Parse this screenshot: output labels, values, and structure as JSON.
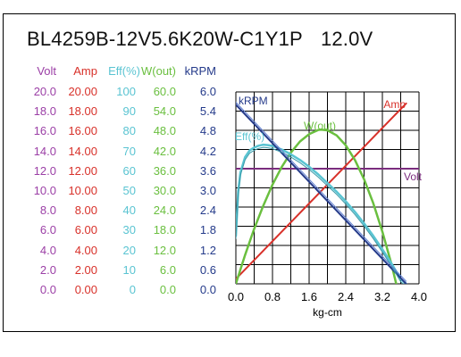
{
  "title": {
    "model": "BL4259B-12V5.6K20W-C1Y1P",
    "voltage": "12.0V"
  },
  "table": {
    "columns": [
      {
        "key": "volt",
        "label": "Volt",
        "color": "#9b3fa6",
        "values": [
          "20.0",
          "18.0",
          "16.0",
          "14.0",
          "12.0",
          "10.0",
          "8.0",
          "6.0",
          "4.0",
          "2.0",
          "0.0"
        ]
      },
      {
        "key": "amp",
        "label": "Amp",
        "color": "#d8312a",
        "values": [
          "20.00",
          "18.00",
          "16.00",
          "14.00",
          "12.00",
          "10.00",
          "8.00",
          "6.00",
          "4.00",
          "2.00",
          "0.00"
        ]
      },
      {
        "key": "eff",
        "label": "Eff(%)",
        "color": "#5ac4d2",
        "values": [
          "100",
          "90",
          "80",
          "70",
          "60",
          "50",
          "40",
          "30",
          "20",
          "10",
          "0"
        ]
      },
      {
        "key": "wout",
        "label": "W(out)",
        "color": "#6abf3f",
        "values": [
          "60.0",
          "54.0",
          "48.0",
          "42.0",
          "36.0",
          "30.0",
          "24.0",
          "18.0",
          "12.0",
          "6.0",
          "0.0"
        ]
      },
      {
        "key": "krpm",
        "label": "kRPM",
        "color": "#243a8a",
        "values": [
          "6.0",
          "5.4",
          "4.8",
          "4.2",
          "3.6",
          "3.0",
          "2.4",
          "1.8",
          "1.2",
          "0.6",
          "0.0"
        ]
      }
    ]
  },
  "chart_data": {
    "type": "line",
    "xlabel": "kg-cm",
    "xlim": [
      0,
      4.0
    ],
    "xticks": [
      "0.0",
      "0.8",
      "1.6",
      "2.4",
      "3.2",
      "4.0"
    ],
    "grid": true,
    "series": [
      {
        "name": "kRPM",
        "color": "#243a8a",
        "scale_max": 6.0,
        "x": [
          0.0,
          3.72
        ],
        "y": [
          5.6,
          0.0
        ]
      },
      {
        "name": "Amp",
        "color": "#d8312a",
        "scale_max": 20.0,
        "x": [
          0.0,
          3.72
        ],
        "y": [
          0.5,
          18.8
        ]
      },
      {
        "name": "Volt",
        "color": "#7b2d7e",
        "scale_max": 20.0,
        "x": [
          0.0,
          4.0
        ],
        "y": [
          12.0,
          12.0
        ]
      },
      {
        "name": "W(out)",
        "color": "#6abf3f",
        "scale_max": 60.0,
        "x": [
          0.0,
          0.2,
          0.4,
          0.6,
          0.8,
          1.0,
          1.2,
          1.4,
          1.6,
          1.8,
          1.86,
          2.0,
          2.2,
          2.4,
          2.6,
          2.8,
          3.0,
          3.2,
          3.4,
          3.6,
          3.72
        ],
        "y": [
          0.0,
          9.0,
          17.2,
          24.5,
          31.0,
          36.5,
          41.0,
          44.5,
          46.8,
          48.1,
          48.2,
          48.0,
          46.4,
          43.3,
          38.7,
          32.7,
          25.2,
          16.3,
          6.0,
          -5.8,
          -13.0
        ]
      },
      {
        "name": "Eff(%)",
        "color": "#5ac4d2",
        "scale_max": 100.0,
        "x": [
          0.0,
          0.05,
          0.1,
          0.2,
          0.3,
          0.4,
          0.5,
          0.6,
          0.7,
          0.8,
          1.0,
          1.2,
          1.4,
          1.6,
          1.8,
          2.0,
          2.2,
          2.4,
          2.6,
          2.8,
          3.0,
          3.2,
          3.4,
          3.6,
          3.72
        ],
        "y": [
          25,
          48,
          58,
          66,
          69.5,
          71,
          72,
          72.5,
          72.3,
          71.8,
          70,
          67.5,
          64.5,
          61,
          57,
          52.5,
          48,
          43,
          37.5,
          31.5,
          25,
          18,
          10.5,
          2.5,
          0
        ]
      }
    ],
    "series_labels": [
      "kRPM",
      "Amp",
      "W(out)",
      "Eff(%)",
      "Volt"
    ]
  }
}
